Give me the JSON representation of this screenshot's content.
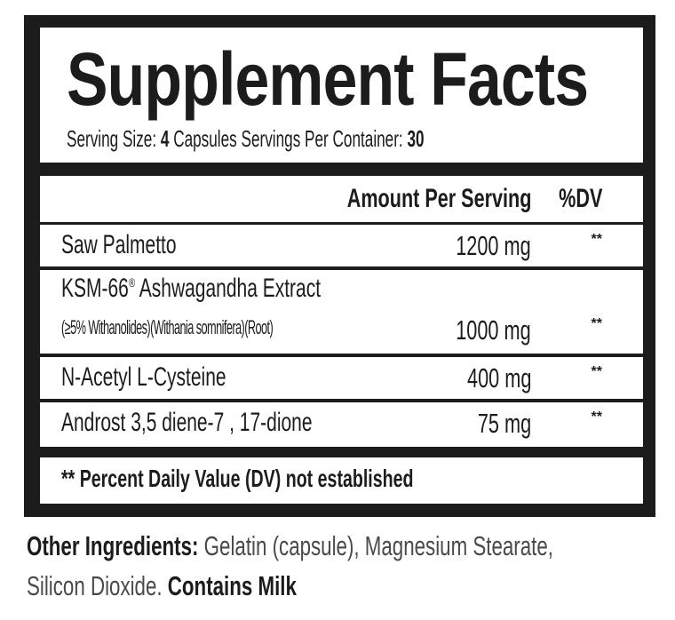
{
  "title": "Supplement Facts",
  "serving": {
    "size_label": "Serving Size:",
    "size_value": "4",
    "size_unit": "Capsules",
    "per_container_label": "Servings Per Container:",
    "per_container_value": "30"
  },
  "header": {
    "amount": "Amount Per Serving",
    "dv": "%DV"
  },
  "ingredients": [
    {
      "name": "Saw Palmetto",
      "amount": "1200 mg",
      "dv": "**"
    },
    {
      "name": "KSM-66",
      "mark": "®",
      "name_rest": "Ashwagandha Extract",
      "detail": "(≥5% Withanolides)(Withania somnifera)(Root)",
      "amount": "1000 mg",
      "dv": "**"
    },
    {
      "name": "N-Acetyl L-Cysteine",
      "amount": "400 mg",
      "dv": "**"
    },
    {
      "name": "Androst 3,5 diene-7 , 17-dione",
      "amount": "75 mg",
      "dv": "**"
    }
  ],
  "footnote": "** Percent Daily Value (DV) not established",
  "other": {
    "label": "Other Ingredients:",
    "line1": "Gelatin (capsule), Magnesium Stearate,",
    "line2": "Silicon Dioxide.",
    "allergen": "Contains Milk"
  }
}
